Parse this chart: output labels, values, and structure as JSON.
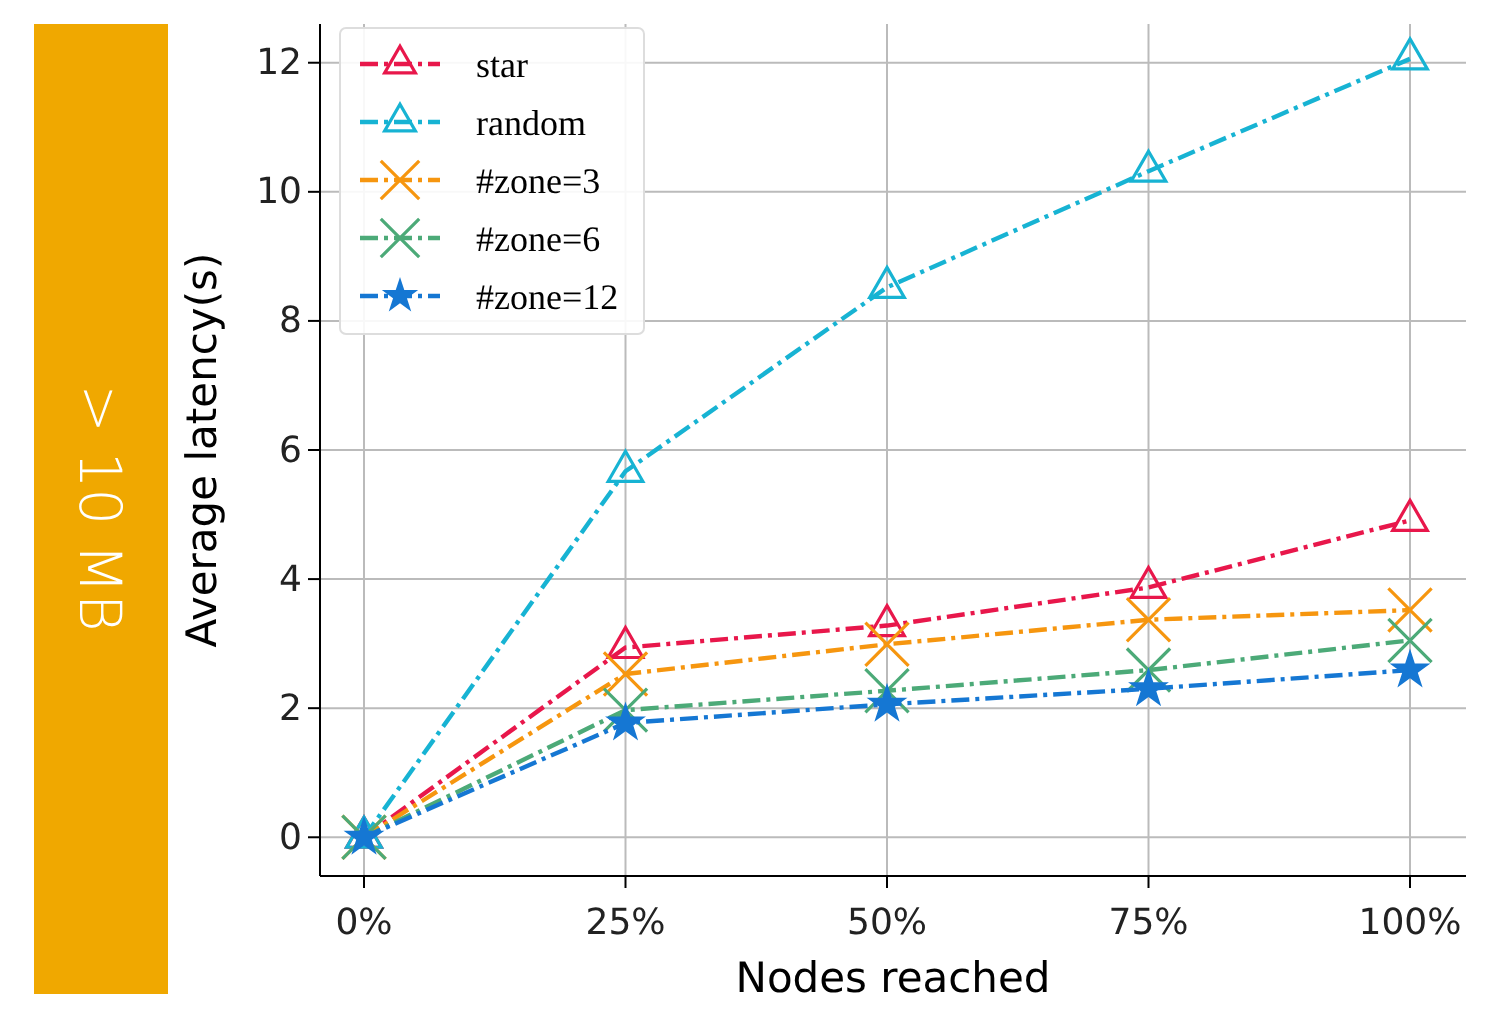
{
  "chart_data": {
    "type": "line",
    "xlabel": "Nodes reached",
    "ylabel": "Average latency(s)",
    "annotations": [
      "> 10 MB"
    ],
    "categories": [
      "0%",
      "25%",
      "50%",
      "75%",
      "100%"
    ],
    "ylim": [
      -0.6,
      12.6
    ],
    "yticks": [
      0,
      2,
      4,
      6,
      8,
      10,
      12
    ],
    "grid": true,
    "legend": "top left",
    "line_style": "dashed",
    "series": [
      {
        "name": "star",
        "color": "#e8174b",
        "marker": "triangle",
        "values": [
          0,
          2.94,
          3.28,
          3.87,
          4.91
        ]
      },
      {
        "name": "random",
        "color": "#17b3d3",
        "marker": "triangle",
        "values": [
          0,
          5.67,
          8.52,
          10.32,
          12.06
        ]
      },
      {
        "name": "#zone=3",
        "color": "#f6960f",
        "marker": "cross",
        "values": [
          0,
          2.53,
          2.99,
          3.37,
          3.52
        ]
      },
      {
        "name": "#zone=6",
        "color": "#4caa78",
        "marker": "cross",
        "values": [
          0,
          1.97,
          2.27,
          2.59,
          3.05
        ]
      },
      {
        "name": "#zone=12",
        "color": "#1577d3",
        "marker": "star",
        "values": [
          0,
          1.77,
          2.06,
          2.3,
          2.59
        ]
      }
    ]
  }
}
